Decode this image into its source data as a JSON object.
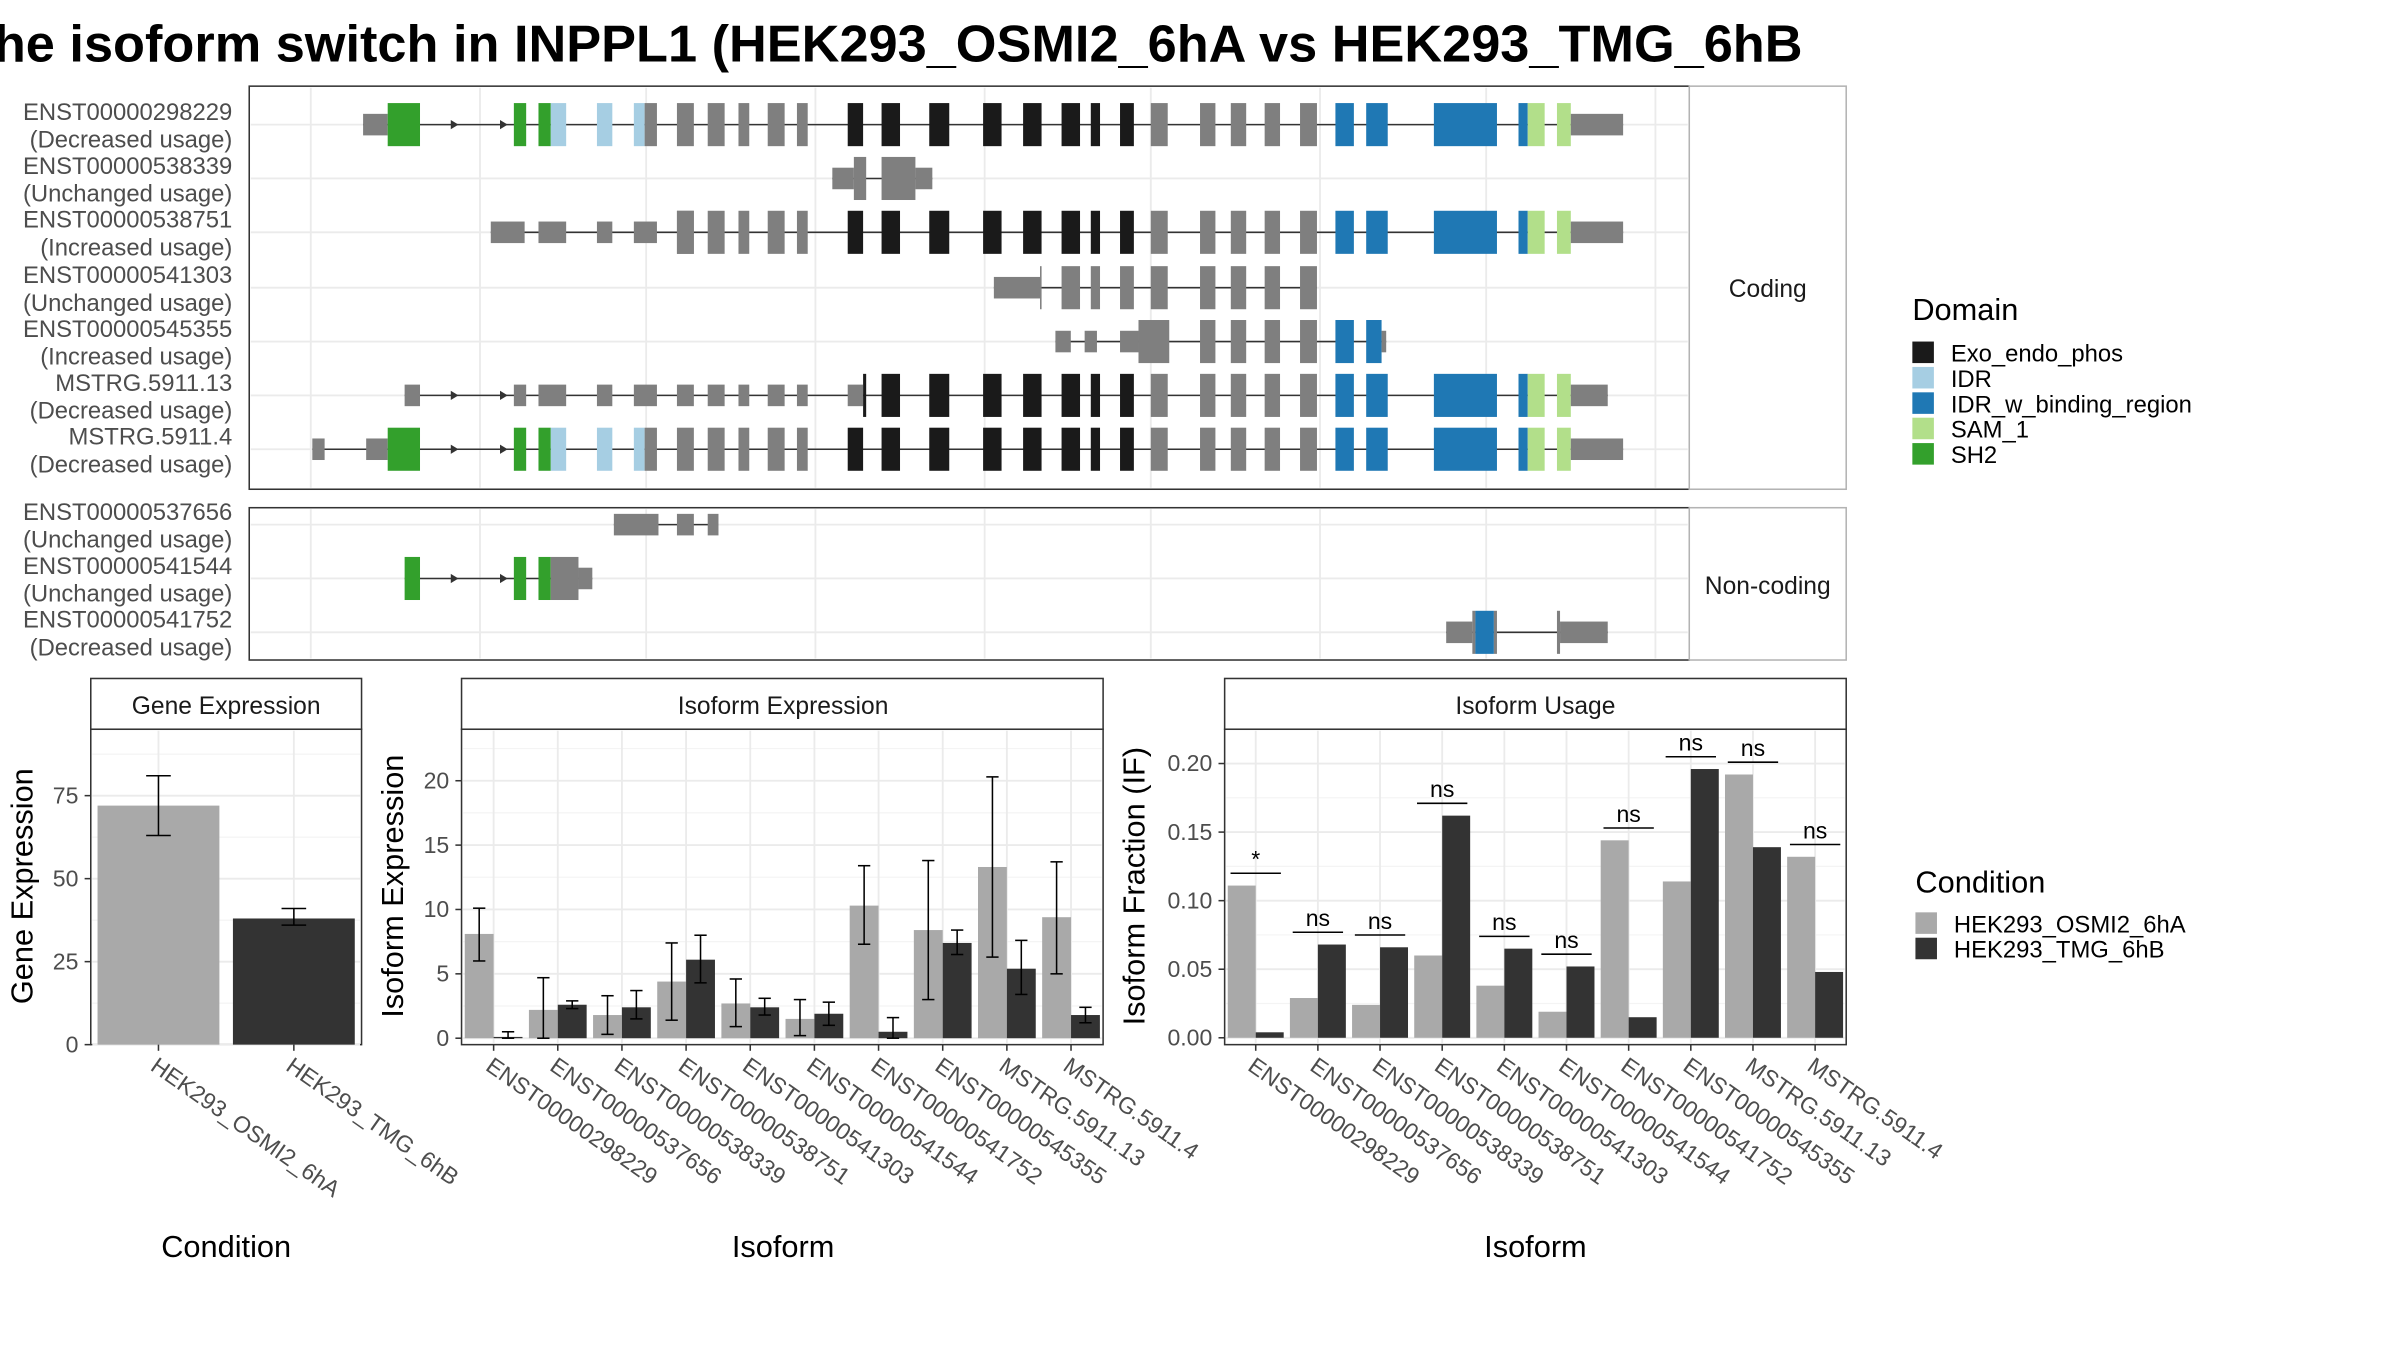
{
  "title": "he isoform switch in INPPL1 (HEK293_OSMI2_6hA vs HEK293_TMG_6hB",
  "colors": {
    "exon": "#7f7f7f",
    "cond1": "#a9a9a9",
    "cond2": "#333333",
    "strip_bg": "#ffffff",
    "grid": "#ebebeb"
  },
  "legend_domain": {
    "title": "Domain",
    "items": [
      {
        "label": "Exo_endo_phos",
        "color": "#1a1a1a"
      },
      {
        "label": "IDR",
        "color": "#a6cee3"
      },
      {
        "label": "IDR_w_binding_region",
        "color": "#1f78b4"
      },
      {
        "label": "SAM_1",
        "color": "#b2df8a"
      },
      {
        "label": "SH2",
        "color": "#33a02c"
      }
    ]
  },
  "legend_condition": {
    "title": "Condition",
    "items": [
      {
        "label": "HEK293_OSMI2_6hA",
        "color": "#a9a9a9"
      },
      {
        "label": "HEK293_TMG_6hB",
        "color": "#333333"
      }
    ]
  },
  "chart_data": [
    {
      "type": "gene-structure",
      "panels": [
        {
          "strip": "Coding",
          "tracks": [
            {
              "id": "ENST00000298229",
              "usage": "(Decreased usage)"
            },
            {
              "id": "ENST00000538339",
              "usage": "(Unchanged usage)"
            },
            {
              "id": "ENST00000538751",
              "usage": "(Increased usage)"
            },
            {
              "id": "ENST00000541303",
              "usage": "(Unchanged usage)"
            },
            {
              "id": "ENST00000545355",
              "usage": "(Increased usage)"
            },
            {
              "id": "MSTRG.5911.13",
              "usage": "(Decreased usage)"
            },
            {
              "id": "MSTRG.5911.4",
              "usage": "(Decreased usage)"
            }
          ]
        },
        {
          "strip": "Non-coding",
          "tracks": [
            {
              "id": "ENST00000537656",
              "usage": "(Unchanged usage)"
            },
            {
              "id": "ENST00000541544",
              "usage": "(Unchanged usage)"
            },
            {
              "id": "ENST00000541752",
              "usage": "(Decreased usage)"
            }
          ]
        }
      ]
    },
    {
      "type": "bar",
      "title": "Gene Expression",
      "xlabel": "Condition",
      "ylabel": "Gene Expression",
      "ylim": [
        0,
        95
      ],
      "yticks": [
        0,
        25,
        50,
        75
      ],
      "categories": [
        "HEK293_OSMI2_6hA",
        "HEK293_TMG_6hB"
      ],
      "values": [
        72,
        38
      ],
      "errors": [
        [
          63,
          81
        ],
        [
          36,
          41
        ]
      ]
    },
    {
      "type": "bar",
      "title": "Isoform Expression",
      "xlabel": "Isoform",
      "ylabel": "Isoform Expression",
      "ylim": [
        -0.5,
        24
      ],
      "yticks": [
        0,
        5,
        10,
        15,
        20
      ],
      "categories": [
        "ENST00000298229",
        "ENST00000537656",
        "ENST00000538339",
        "ENST00000538751",
        "ENST00000541303",
        "ENST00000541544",
        "ENST00000541752",
        "ENST00000545355",
        "MSTRG.5911.13",
        "MSTRG.5911.4"
      ],
      "series": [
        {
          "name": "HEK293_OSMI2_6hA",
          "values": [
            8.1,
            2.2,
            1.8,
            4.4,
            2.7,
            1.5,
            10.3,
            8.4,
            13.3,
            9.4
          ],
          "errors": [
            [
              6.0,
              10.1
            ],
            [
              0,
              4.7
            ],
            [
              0.3,
              3.3
            ],
            [
              1.4,
              7.4
            ],
            [
              0.9,
              4.6
            ],
            [
              0.2,
              3.0
            ],
            [
              7.3,
              13.4
            ],
            [
              3.0,
              13.8
            ],
            [
              6.3,
              20.3
            ],
            [
              5.0,
              13.7
            ]
          ]
        },
        {
          "name": "HEK293_TMG_6hB",
          "values": [
            0.1,
            2.6,
            2.4,
            6.1,
            2.4,
            1.9,
            0.5,
            7.4,
            5.4,
            1.8
          ],
          "errors": [
            [
              0,
              0.5
            ],
            [
              2.3,
              2.9
            ],
            [
              1.5,
              3.7
            ],
            [
              4.3,
              8.0
            ],
            [
              1.8,
              3.1
            ],
            [
              1.0,
              2.8
            ],
            [
              0,
              1.6
            ],
            [
              6.5,
              8.4
            ],
            [
              3.4,
              7.6
            ],
            [
              1.2,
              2.4
            ]
          ]
        }
      ]
    },
    {
      "type": "bar",
      "title": "Isoform Usage",
      "xlabel": "Isoform",
      "ylabel": "Isoform Fraction (IF)",
      "ylim": [
        -0.005,
        0.225
      ],
      "yticks": [
        "0.00",
        "0.05",
        "0.10",
        "0.15",
        "0.20"
      ],
      "categories": [
        "ENST00000298229",
        "ENST00000537656",
        "ENST00000538339",
        "ENST00000538751",
        "ENST00000541303",
        "ENST00000541544",
        "ENST00000541752",
        "ENST00000545355",
        "MSTRG.5911.13",
        "MSTRG.5911.4"
      ],
      "series": [
        {
          "name": "HEK293_OSMI2_6hA",
          "values": [
            0.111,
            0.029,
            0.024,
            0.06,
            0.038,
            0.019,
            0.144,
            0.114,
            0.192,
            0.132
          ]
        },
        {
          "name": "HEK293_TMG_6hB",
          "values": [
            0.004,
            0.068,
            0.066,
            0.162,
            0.065,
            0.052,
            0.015,
            0.196,
            0.139,
            0.048
          ]
        }
      ],
      "significance": [
        "*",
        "ns",
        "ns",
        "ns",
        "ns",
        "ns",
        "ns",
        "ns",
        "ns",
        "ns"
      ]
    }
  ]
}
